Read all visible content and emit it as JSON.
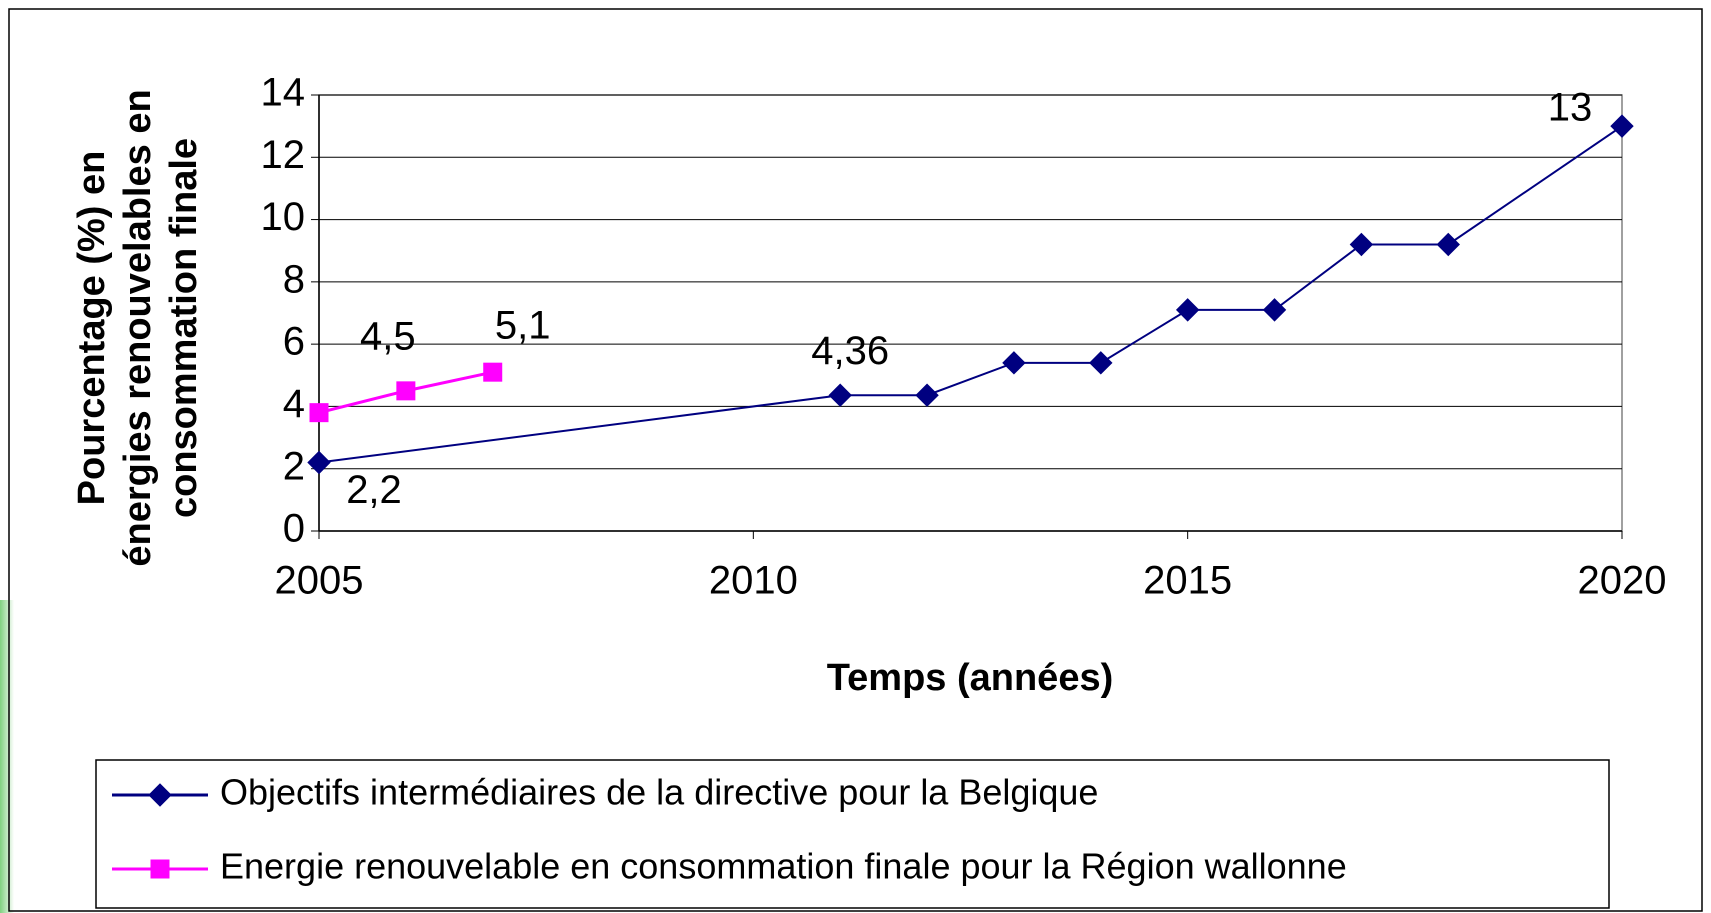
{
  "chart_data": {
    "type": "line",
    "xlabel": "Temps (années)",
    "ylabel": [
      "Pourcentage (%) en",
      "énergies renouvelables en",
      "consommation finale"
    ],
    "xlim": [
      2005,
      2020
    ],
    "xticks": [
      2005,
      2010,
      2015,
      2020
    ],
    "ylim": [
      0,
      14
    ],
    "yticks": [
      0,
      2,
      4,
      6,
      8,
      10,
      12,
      14
    ],
    "grid": true,
    "legend": "bottom",
    "series": [
      {
        "name": "Objectifs intermédiaires de la directive pour la Belgique",
        "color": "#000080",
        "marker": "diamond",
        "x": [
          2005,
          2011,
          2012,
          2013,
          2014,
          2015,
          2016,
          2017,
          2018,
          2020
        ],
        "values": [
          2.2,
          4.36,
          4.36,
          5.4,
          5.4,
          7.1,
          7.1,
          9.2,
          9.2,
          13
        ],
        "value_labels": [
          "2,2",
          "4,36",
          null,
          null,
          null,
          null,
          null,
          null,
          null,
          "13"
        ]
      },
      {
        "name": "Energie renouvelable en consommation finale pour la Région wallonne",
        "color": "#ff00ff",
        "marker": "square",
        "x": [
          2005,
          2006,
          2007
        ],
        "values": [
          3.8,
          4.5,
          5.1
        ],
        "value_labels": [
          null,
          "4,5",
          "5,1"
        ]
      }
    ]
  }
}
